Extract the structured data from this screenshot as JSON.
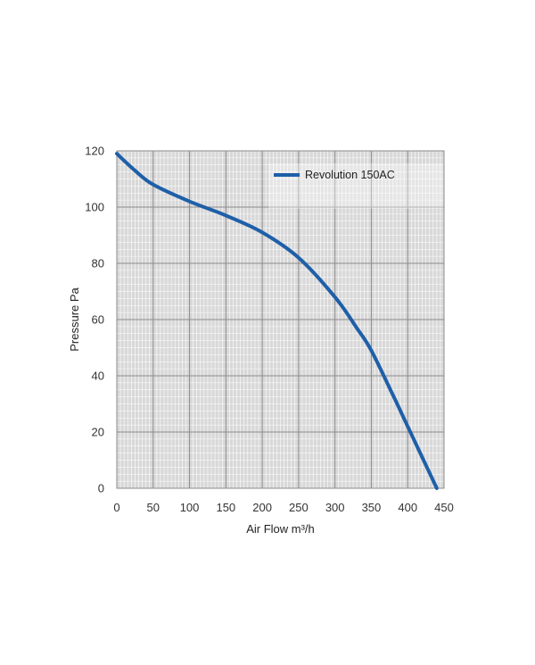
{
  "chart_data": {
    "type": "line",
    "xlabel": "Air Flow m³/h",
    "ylabel": "Pressure Pa",
    "xlim": [
      0,
      450
    ],
    "ylim": [
      0,
      120
    ],
    "x_ticks": [
      "0",
      "50",
      "100",
      "150",
      "200",
      "250",
      "300",
      "350",
      "400",
      "450"
    ],
    "y_ticks": [
      "0",
      "20",
      "40",
      "60",
      "80",
      "100",
      "120"
    ],
    "grid": true,
    "legend_position": "top-right",
    "series": [
      {
        "name": "Revolution 150AC",
        "color": "#1f5fa8",
        "x": [
          0,
          25,
          50,
          100,
          150,
          200,
          250,
          300,
          330,
          350,
          380,
          400,
          420,
          440
        ],
        "y": [
          119,
          113,
          108,
          102,
          97,
          91,
          82,
          68,
          57,
          49,
          33,
          22,
          11,
          0
        ]
      }
    ]
  },
  "colors": {
    "plot_background": "#d8d8d8",
    "major_grid": "#8c8c8c",
    "minor_grid": "#ffffff"
  }
}
